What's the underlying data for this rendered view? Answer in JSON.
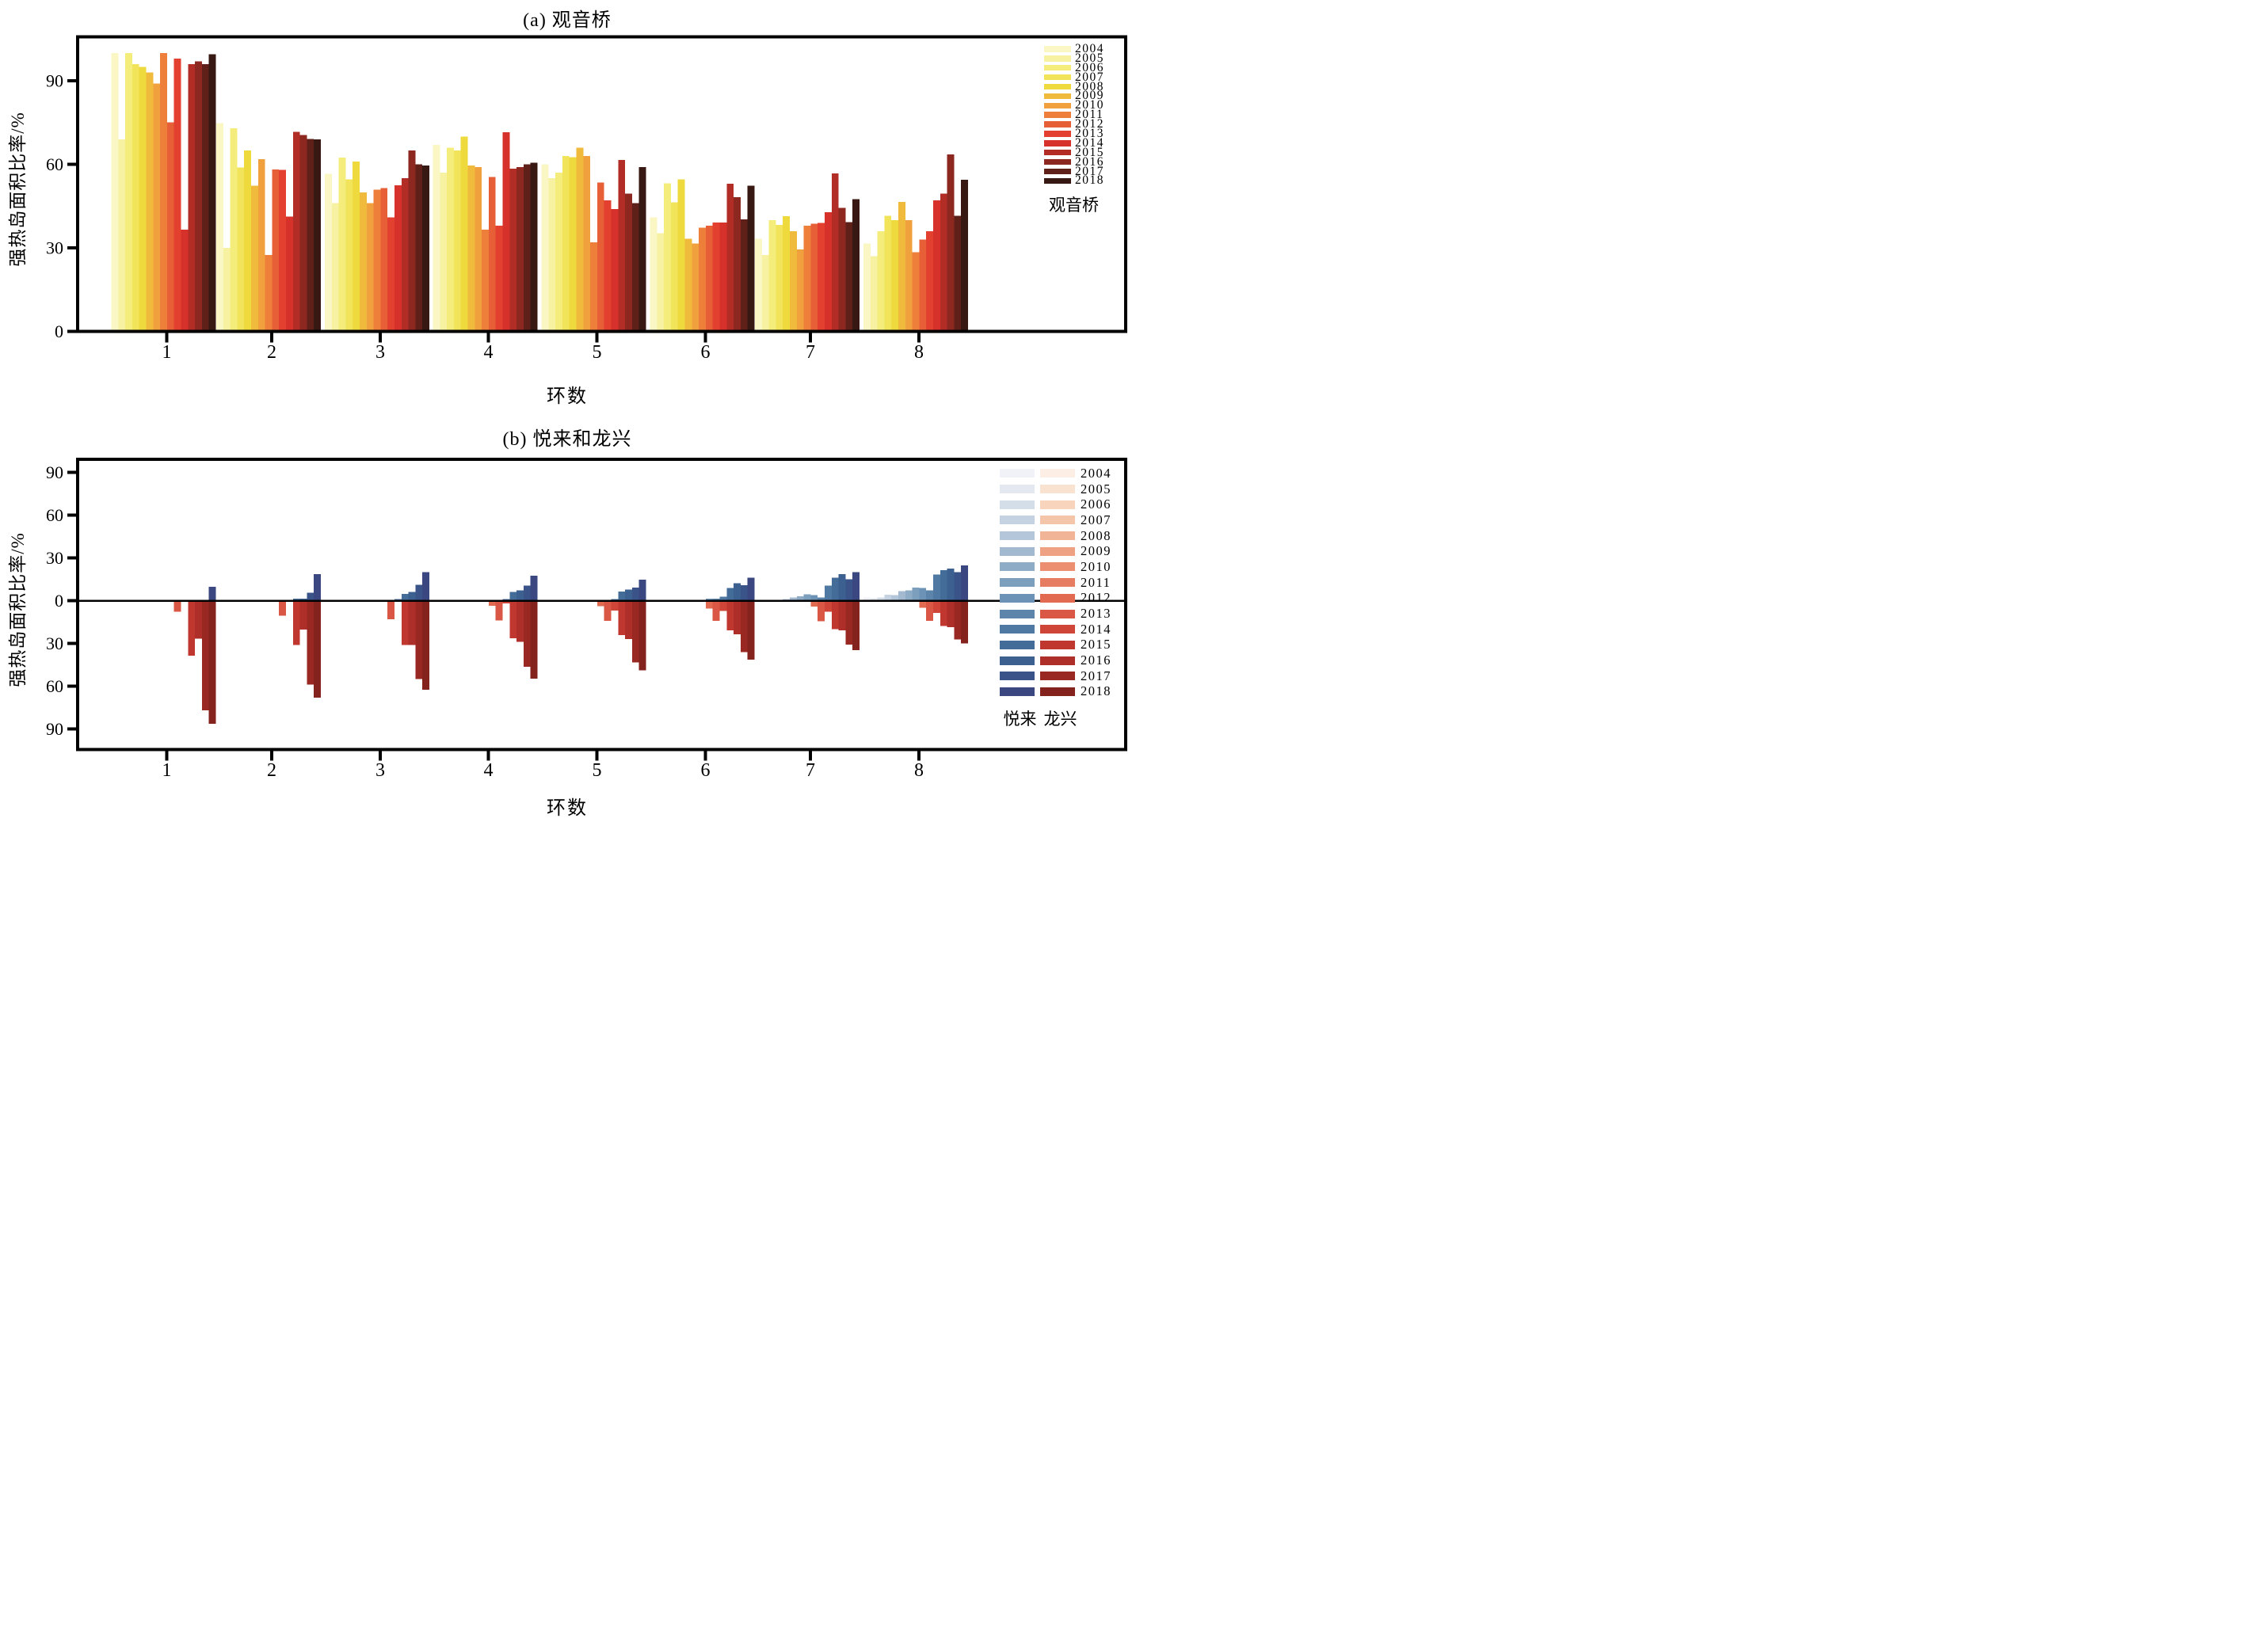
{
  "chart_data": [
    {
      "type": "bar",
      "title": "(a) 观音桥",
      "xlabel": "环数",
      "ylabel": "强热岛面积比率/%",
      "legend_label": "观音桥",
      "legend_position": "right-inside",
      "grid": false,
      "categories": [
        "1",
        "2",
        "3",
        "4",
        "5",
        "6",
        "7",
        "8"
      ],
      "yticks": [
        0,
        30,
        60,
        90
      ],
      "ylim": [
        0,
        105.8
      ],
      "years": [
        2004,
        2005,
        2006,
        2007,
        2008,
        2009,
        2010,
        2011,
        2012,
        2013,
        2014,
        2015,
        2016,
        2017,
        2018
      ],
      "colors": [
        "#FAF7C5",
        "#F7F2A2",
        "#F4EC7B",
        "#F1E45A",
        "#EFDA3D",
        "#F0BA3C",
        "#F0A03D",
        "#ED7F3B",
        "#E75F36",
        "#E4402F",
        "#D7312B",
        "#B12D25",
        "#8D2821",
        "#5F2019",
        "#381812"
      ],
      "values_by_ring": [
        [
          100,
          69,
          100,
          96,
          95,
          93,
          89,
          100,
          75,
          98,
          36.5,
          96,
          97,
          96,
          99.5
        ],
        [
          74.8,
          30,
          72.9,
          58.8,
          65,
          52.3,
          61.8,
          27.5,
          58.2,
          58,
          41.2,
          71.7,
          70.5,
          69.1,
          69
        ],
        [
          56.6,
          46.1,
          62.4,
          54.6,
          61,
          49.9,
          46,
          50.9,
          51.5,
          41,
          52.5,
          55,
          65,
          60,
          59.5
        ],
        [
          67,
          57,
          66,
          65,
          70,
          59.5,
          59,
          36.5,
          55.5,
          38,
          71.5,
          58.5,
          59,
          60,
          60.5
        ],
        [
          60,
          55,
          57,
          63,
          62.5,
          66,
          63,
          32,
          53.5,
          47,
          44,
          61.5,
          49.5,
          46,
          59
        ],
        [
          41,
          35.3,
          53.2,
          46.4,
          54.6,
          33.2,
          31.5,
          37.2,
          37.9,
          39.1,
          39.1,
          53,
          48.2,
          40.3,
          52.3
        ],
        [
          33.2,
          27.5,
          40,
          38.3,
          41.4,
          36,
          29.4,
          38,
          38.6,
          39,
          42.8,
          56.7,
          44.3,
          39.3,
          47.5
        ],
        [
          31.5,
          27,
          36,
          41.5,
          40,
          46.5,
          40,
          28.5,
          33,
          36,
          47,
          49.5,
          63.5,
          41.5,
          54.5
        ]
      ]
    },
    {
      "type": "diverging-bar",
      "title": "(b) 悦来和龙兴",
      "xlabel": "环数",
      "ylabel": "强热岛面积比率/%",
      "grid": false,
      "categories": [
        "1",
        "2",
        "3",
        "4",
        "5",
        "6",
        "7",
        "8"
      ],
      "yticks": [
        90,
        60,
        30,
        0,
        -30,
        -60,
        -90
      ],
      "ytick_labels": [
        "90",
        "60",
        "30",
        "0",
        "30",
        "60",
        "90"
      ],
      "ylim": [
        -104,
        99
      ],
      "years": [
        2004,
        2005,
        2006,
        2007,
        2008,
        2009,
        2010,
        2011,
        2012,
        2013,
        2014,
        2015,
        2016,
        2017,
        2018
      ],
      "series_up": {
        "name": "悦来",
        "colors": [
          "#F0F2F7",
          "#E4E9F1",
          "#D4DEE9",
          "#C5D2E1",
          "#B4C6D9",
          "#A2B9D0",
          "#8FACC7",
          "#7C9FBE",
          "#6C92B5",
          "#5D85AC",
          "#4F78A2",
          "#446C99",
          "#3C6090",
          "#3A5389",
          "#3A4781"
        ],
        "values_by_ring": [
          [
            0,
            0,
            0,
            0,
            0,
            0,
            0,
            0,
            0,
            0,
            0,
            0,
            0,
            0,
            9.7
          ],
          [
            0,
            0,
            0,
            0,
            0,
            0,
            0,
            0,
            0,
            0,
            0,
            1.5,
            1.5,
            5.6,
            18.5
          ],
          [
            0,
            0,
            0,
            0,
            0,
            0,
            0,
            0,
            0,
            0,
            1,
            4.6,
            6,
            11,
            20
          ],
          [
            0,
            0,
            0,
            0,
            0,
            0,
            0,
            0,
            0,
            0,
            1,
            6,
            7.1,
            10.6,
            17.6
          ],
          [
            0,
            0,
            0,
            0,
            0,
            0,
            0,
            0,
            0,
            0,
            1,
            6.3,
            7.7,
            9.3,
            14.8
          ],
          [
            0,
            0,
            0,
            0,
            0,
            0,
            0,
            0,
            1.4,
            1.4,
            2.8,
            9,
            12.3,
            10.9,
            16.2
          ],
          [
            0,
            0,
            0,
            0,
            1,
            2.3,
            3.1,
            4.4,
            3.9,
            2.3,
            10.6,
            16.2,
            18.5,
            15.1,
            20.1
          ],
          [
            2.3,
            1.6,
            2.3,
            4.2,
            4,
            6.7,
            7.1,
            9.3,
            9,
            7.1,
            18.2,
            21.5,
            22.5,
            19.9,
            24.7
          ]
        ]
      },
      "series_down": {
        "name": "龙兴",
        "colors": [
          "#FCEEE4",
          "#FAE2D1",
          "#F8D4BD",
          "#F5C5A9",
          "#F2B496",
          "#EFA283",
          "#EB8F70",
          "#E67C60",
          "#E16A51",
          "#D95744",
          "#CF4638",
          "#C03730",
          "#AE2E29",
          "#992823",
          "#84221E"
        ],
        "values_by_ring": [
          [
            0,
            0,
            0,
            0,
            0,
            0,
            0,
            0,
            0,
            -7.8,
            0,
            -38.6,
            -26.6,
            -77,
            -86.3
          ],
          [
            0,
            0,
            0,
            0,
            0,
            0,
            0,
            0,
            0,
            -10.6,
            0,
            -31,
            -20.4,
            -58.9,
            -68
          ],
          [
            0,
            0,
            0,
            0,
            0,
            0,
            0,
            0,
            0,
            -13,
            0,
            -31,
            -31,
            -55,
            -62.5
          ],
          [
            0,
            0,
            0,
            0,
            0,
            0,
            0,
            0,
            -3.7,
            -14,
            -2,
            -26.4,
            -28.8,
            -46.4,
            -54.7
          ],
          [
            0,
            0,
            0,
            0,
            0,
            0,
            0,
            0,
            -4,
            -14.2,
            -7,
            -24.2,
            -27,
            -43.3,
            -48.9
          ],
          [
            0,
            0,
            0,
            0,
            0,
            0,
            0,
            0,
            -5.6,
            -14.2,
            -7.2,
            -20.8,
            -23.6,
            -36.1,
            -41.3
          ],
          [
            0,
            0,
            0,
            0,
            0,
            0,
            0,
            0,
            -4.2,
            -14.4,
            -7.8,
            -20,
            -20.9,
            -30.9,
            -34.8
          ],
          [
            0,
            0,
            0,
            0,
            0,
            0,
            0,
            0,
            -5.1,
            -14.2,
            -8.6,
            -17.9,
            -18.5,
            -27.1,
            -30.1
          ]
        ]
      }
    }
  ]
}
